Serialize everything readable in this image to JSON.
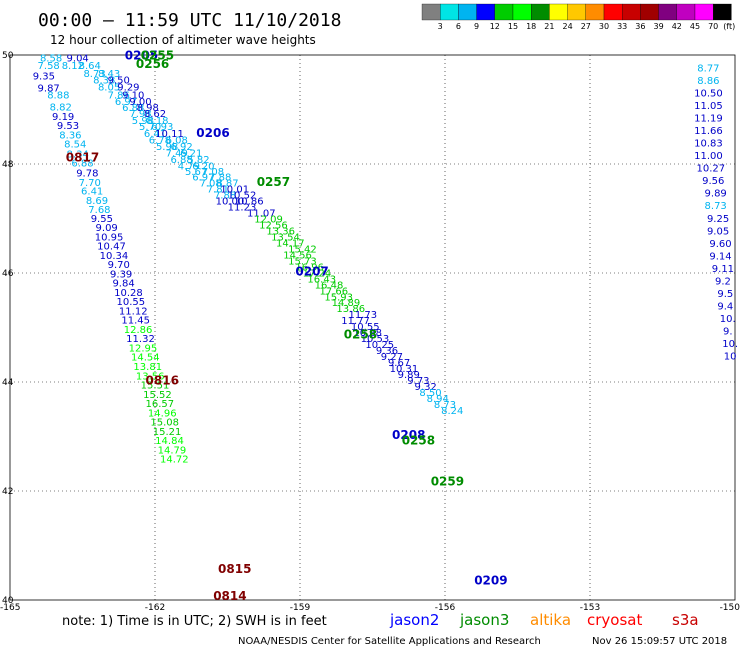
{
  "chart_data": {
    "type": "scatter",
    "title": "00:00 – 11:59 UTC 11/10/2018",
    "subtitle": "12 hour collection of altimeter wave heights",
    "xlim": [
      -165,
      -150
    ],
    "ylim": [
      40,
      50
    ],
    "x_ticks": [
      "-165",
      "-162",
      "-159",
      "-156",
      "-153",
      "-150"
    ],
    "y_ticks": [
      "40",
      "42",
      "44",
      "46",
      "48",
      "50"
    ],
    "colorbar": {
      "labels": [
        "3",
        "6",
        "9",
        "12",
        "15",
        "18",
        "21",
        "24",
        "27",
        "30",
        "33",
        "36",
        "39",
        "42",
        "45",
        "70"
      ],
      "unit": "(ft)",
      "colors": [
        "#808080",
        "#00e5e5",
        "#00b4f0",
        "#0000ff",
        "#00cc00",
        "#00ff00",
        "#008c00",
        "#ffff00",
        "#ffc800",
        "#ff8c00",
        "#ff0000",
        "#c80000",
        "#a00000",
        "#800080",
        "#c000c0",
        "#ff00ff",
        "#000000"
      ]
    },
    "track_labels": [
      {
        "label": "0205",
        "x": -162.28,
        "y": 49.92,
        "color": "#0000c8"
      },
      {
        "label": "0255",
        "x": -161.95,
        "y": 49.92,
        "color": "#008c00"
      },
      {
        "label": "0256",
        "x": -162.05,
        "y": 49.76,
        "color": "#008c00"
      },
      {
        "label": "0206",
        "x": -160.8,
        "y": 48.5,
        "color": "#0000c8"
      },
      {
        "label": "0817",
        "x": -163.5,
        "y": 48.05,
        "color": "#800000"
      },
      {
        "label": "0257",
        "x": -159.55,
        "y": 47.6,
        "color": "#008c00"
      },
      {
        "label": "0207",
        "x": -158.75,
        "y": 45.95,
        "color": "#0000c8"
      },
      {
        "label": "0258",
        "x": -157.75,
        "y": 44.8,
        "color": "#008c00"
      },
      {
        "label": "0816",
        "x": -161.85,
        "y": 43.95,
        "color": "#800000"
      },
      {
        "label": "0208",
        "x": -156.75,
        "y": 42.95,
        "color": "#0000c8"
      },
      {
        "label": "0258",
        "x": -156.55,
        "y": 42.85,
        "color": "#008c00"
      },
      {
        "label": "0259",
        "x": -155.95,
        "y": 42.1,
        "color": "#008c00"
      },
      {
        "label": "0209",
        "x": -155.05,
        "y": 40.28,
        "color": "#0000c8"
      },
      {
        "label": "0815",
        "x": -160.35,
        "y": 40.5,
        "color": "#800000"
      },
      {
        "label": "0814",
        "x": -160.45,
        "y": 40.0,
        "color": "#800000"
      }
    ],
    "observations": [
      {
        "x": -164.15,
        "y": 49.88,
        "v": "8.58",
        "c": "#00b4f0"
      },
      {
        "x": -163.6,
        "y": 49.88,
        "v": "9.04",
        "c": "#0000c8"
      },
      {
        "x": -164.2,
        "y": 49.74,
        "v": "7.58",
        "c": "#00b4f0"
      },
      {
        "x": -163.7,
        "y": 49.74,
        "v": "8.12",
        "c": "#00b4f0"
      },
      {
        "x": -163.35,
        "y": 49.74,
        "v": "8.64",
        "c": "#00b4f0"
      },
      {
        "x": -163.25,
        "y": 49.6,
        "v": "8.73",
        "c": "#00b4f0"
      },
      {
        "x": -162.95,
        "y": 49.6,
        "v": "8.43",
        "c": "#00b4f0"
      },
      {
        "x": -164.3,
        "y": 49.55,
        "v": "9.35",
        "c": "#0000c8"
      },
      {
        "x": -163.05,
        "y": 49.48,
        "v": "8.38",
        "c": "#00b4f0"
      },
      {
        "x": -162.75,
        "y": 49.48,
        "v": "9.50",
        "c": "#0000c8"
      },
      {
        "x": -164.2,
        "y": 49.33,
        "v": "9.87",
        "c": "#0000c8"
      },
      {
        "x": -162.95,
        "y": 49.35,
        "v": "8.05",
        "c": "#00b4f0"
      },
      {
        "x": -162.55,
        "y": 49.35,
        "v": "9.29",
        "c": "#0000c8"
      },
      {
        "x": -162.75,
        "y": 49.2,
        "v": "7.86",
        "c": "#00b4f0"
      },
      {
        "x": -162.45,
        "y": 49.2,
        "v": "9.10",
        "c": "#0000c8"
      },
      {
        "x": -164.0,
        "y": 49.2,
        "v": "8.88",
        "c": "#00b4f0"
      },
      {
        "x": -162.6,
        "y": 49.08,
        "v": "6.97",
        "c": "#00b4f0"
      },
      {
        "x": -162.3,
        "y": 49.08,
        "v": "9.00",
        "c": "#0000c8"
      },
      {
        "x": -163.95,
        "y": 48.98,
        "v": "8.82",
        "c": "#00b4f0"
      },
      {
        "x": -162.45,
        "y": 48.97,
        "v": "6.88",
        "c": "#00b4f0"
      },
      {
        "x": -162.15,
        "y": 48.97,
        "v": "8.98",
        "c": "#0000c8"
      },
      {
        "x": -162.3,
        "y": 48.86,
        "v": "7.98",
        "c": "#00b4f0"
      },
      {
        "x": -162.0,
        "y": 48.86,
        "v": "8.62",
        "c": "#0000c8"
      },
      {
        "x": -163.9,
        "y": 48.81,
        "v": "9.19",
        "c": "#0000c8"
      },
      {
        "x": -162.25,
        "y": 48.73,
        "v": "5.98",
        "c": "#00b4f0"
      },
      {
        "x": -161.95,
        "y": 48.73,
        "v": "8.18",
        "c": "#00b4f0"
      },
      {
        "x": -163.8,
        "y": 48.64,
        "v": "9.53",
        "c": "#0000c8"
      },
      {
        "x": -162.1,
        "y": 48.62,
        "v": "5.70",
        "c": "#00b4f0"
      },
      {
        "x": -161.85,
        "y": 48.62,
        "v": "6.93",
        "c": "#00b4f0"
      },
      {
        "x": -163.75,
        "y": 48.47,
        "v": "8.36",
        "c": "#00b4f0"
      },
      {
        "x": -162.0,
        "y": 48.5,
        "v": "6.41",
        "c": "#00b4f0"
      },
      {
        "x": -161.7,
        "y": 48.5,
        "v": "10.11",
        "c": "#0000c8"
      },
      {
        "x": -161.9,
        "y": 48.38,
        "v": "6.78",
        "c": "#00b4f0"
      },
      {
        "x": -161.55,
        "y": 48.38,
        "v": "6.08",
        "c": "#00b4f0"
      },
      {
        "x": -163.65,
        "y": 48.3,
        "v": "8.54",
        "c": "#00b4f0"
      },
      {
        "x": -161.75,
        "y": 48.26,
        "v": "5.98",
        "c": "#00b4f0"
      },
      {
        "x": -161.45,
        "y": 48.26,
        "v": "6.92",
        "c": "#00b4f0"
      },
      {
        "x": -163.6,
        "y": 48.12,
        "v": "8.34",
        "c": "#00b4f0"
      },
      {
        "x": -161.55,
        "y": 48.14,
        "v": "7.49",
        "c": "#00b4f0"
      },
      {
        "x": -161.25,
        "y": 48.14,
        "v": "6.21",
        "c": "#00b4f0"
      },
      {
        "x": -161.45,
        "y": 48.02,
        "v": "6.88",
        "c": "#00b4f0"
      },
      {
        "x": -161.1,
        "y": 48.02,
        "v": "5.82",
        "c": "#00b4f0"
      },
      {
        "x": -163.5,
        "y": 47.95,
        "v": "6.88",
        "c": "#00b4f0"
      },
      {
        "x": -161.3,
        "y": 47.9,
        "v": "4.79",
        "c": "#00b4f0"
      },
      {
        "x": -161.0,
        "y": 47.9,
        "v": "6.20",
        "c": "#00b4f0"
      },
      {
        "x": -161.15,
        "y": 47.8,
        "v": "5.67",
        "c": "#00b4f0"
      },
      {
        "x": -160.8,
        "y": 47.8,
        "v": "7.08",
        "c": "#00b4f0"
      },
      {
        "x": -163.4,
        "y": 47.77,
        "v": "9.78",
        "c": "#0000c8"
      },
      {
        "x": -161.0,
        "y": 47.7,
        "v": "6.97",
        "c": "#00b4f0"
      },
      {
        "x": -160.65,
        "y": 47.7,
        "v": "7.88",
        "c": "#00b4f0"
      },
      {
        "x": -160.85,
        "y": 47.59,
        "v": "7.08",
        "c": "#00b4f0"
      },
      {
        "x": -160.5,
        "y": 47.59,
        "v": "8.87",
        "c": "#00b4f0"
      },
      {
        "x": -163.35,
        "y": 47.6,
        "v": "7.70",
        "c": "#00b4f0"
      },
      {
        "x": -160.7,
        "y": 47.48,
        "v": "7.81",
        "c": "#00b4f0"
      },
      {
        "x": -160.35,
        "y": 47.48,
        "v": "10.01",
        "c": "#0000c8"
      },
      {
        "x": -163.3,
        "y": 47.44,
        "v": "6.41",
        "c": "#00b4f0"
      },
      {
        "x": -160.55,
        "y": 47.37,
        "v": "7.88",
        "c": "#00b4f0"
      },
      {
        "x": -160.2,
        "y": 47.37,
        "v": "10.52",
        "c": "#0000c8"
      },
      {
        "x": -163.2,
        "y": 47.27,
        "v": "8.69",
        "c": "#00b4f0"
      },
      {
        "x": -160.45,
        "y": 47.26,
        "v": "10.00",
        "c": "#0000c8"
      },
      {
        "x": -160.05,
        "y": 47.26,
        "v": "10.86",
        "c": "#0000c8"
      },
      {
        "x": -160.2,
        "y": 47.15,
        "v": "11.23",
        "c": "#0000c8"
      },
      {
        "x": -163.15,
        "y": 47.1,
        "v": "7.68",
        "c": "#00b4f0"
      },
      {
        "x": -159.8,
        "y": 47.04,
        "v": "11.07",
        "c": "#0000c8"
      },
      {
        "x": -163.1,
        "y": 46.94,
        "v": "9.55",
        "c": "#0000c8"
      },
      {
        "x": -159.65,
        "y": 46.93,
        "v": "12.09",
        "c": "#00cc00"
      },
      {
        "x": -163.0,
        "y": 46.77,
        "v": "9.09",
        "c": "#0000c8"
      },
      {
        "x": -159.55,
        "y": 46.82,
        "v": "12.56",
        "c": "#00cc00"
      },
      {
        "x": -159.4,
        "y": 46.71,
        "v": "13.36",
        "c": "#00cc00"
      },
      {
        "x": -162.95,
        "y": 46.6,
        "v": "10.95",
        "c": "#0000c8"
      },
      {
        "x": -159.3,
        "y": 46.6,
        "v": "13.54",
        "c": "#00cc00"
      },
      {
        "x": -159.2,
        "y": 46.49,
        "v": "14.17",
        "c": "#00cc00"
      },
      {
        "x": -158.95,
        "y": 46.38,
        "v": "15.42",
        "c": "#00cc00"
      },
      {
        "x": -162.9,
        "y": 46.43,
        "v": "10.47",
        "c": "#0000c8"
      },
      {
        "x": -159.05,
        "y": 46.27,
        "v": "14.56",
        "c": "#00cc00"
      },
      {
        "x": -162.85,
        "y": 46.26,
        "v": "10.34",
        "c": "#0000c8"
      },
      {
        "x": -158.95,
        "y": 46.16,
        "v": "15.73",
        "c": "#00cc00"
      },
      {
        "x": -162.75,
        "y": 46.09,
        "v": "9.70",
        "c": "#0000c8"
      },
      {
        "x": -158.8,
        "y": 46.05,
        "v": "16.96",
        "c": "#00cc00"
      },
      {
        "x": -158.65,
        "y": 45.94,
        "v": "17.24",
        "c": "#00cc00"
      },
      {
        "x": -162.7,
        "y": 45.92,
        "v": "9.39",
        "c": "#0000c8"
      },
      {
        "x": -158.55,
        "y": 45.83,
        "v": "16.43",
        "c": "#00cc00"
      },
      {
        "x": -162.65,
        "y": 45.75,
        "v": "9.84",
        "c": "#0000c8"
      },
      {
        "x": -158.4,
        "y": 45.72,
        "v": "16.48",
        "c": "#00cc00"
      },
      {
        "x": -158.3,
        "y": 45.61,
        "v": "17.66",
        "c": "#00cc00"
      },
      {
        "x": -162.55,
        "y": 45.58,
        "v": "10.28",
        "c": "#0000c8"
      },
      {
        "x": -158.2,
        "y": 45.5,
        "v": "15.93",
        "c": "#00cc00"
      },
      {
        "x": -162.5,
        "y": 45.41,
        "v": "10.55",
        "c": "#0000c8"
      },
      {
        "x": -158.05,
        "y": 45.39,
        "v": "14.89",
        "c": "#00cc00"
      },
      {
        "x": -157.95,
        "y": 45.28,
        "v": "13.86",
        "c": "#00cc00"
      },
      {
        "x": -162.45,
        "y": 45.24,
        "v": "11.12",
        "c": "#0000c8"
      },
      {
        "x": -157.7,
        "y": 45.17,
        "v": "11.73",
        "c": "#0000c8"
      },
      {
        "x": -157.85,
        "y": 45.06,
        "v": "11.77",
        "c": "#0000c8"
      },
      {
        "x": -162.4,
        "y": 45.07,
        "v": "11.45",
        "c": "#0000c8"
      },
      {
        "x": -157.65,
        "y": 44.95,
        "v": "10.55",
        "c": "#0000c8"
      },
      {
        "x": -157.6,
        "y": 44.84,
        "v": "10.88",
        "c": "#0000c8"
      },
      {
        "x": -162.35,
        "y": 44.9,
        "v": "12.86",
        "c": "#00ff00"
      },
      {
        "x": -157.45,
        "y": 44.73,
        "v": "10.53",
        "c": "#0000c8"
      },
      {
        "x": -162.3,
        "y": 44.73,
        "v": "11.32",
        "c": "#0000c8"
      },
      {
        "x": -157.35,
        "y": 44.62,
        "v": "10.25",
        "c": "#0000c8"
      },
      {
        "x": -162.25,
        "y": 44.56,
        "v": "12.95",
        "c": "#00ff00"
      },
      {
        "x": -157.2,
        "y": 44.51,
        "v": "9.36",
        "c": "#0000c8"
      },
      {
        "x": -157.1,
        "y": 44.4,
        "v": "9.27",
        "c": "#0000c8"
      },
      {
        "x": -162.2,
        "y": 44.39,
        "v": "14.54",
        "c": "#00ff00"
      },
      {
        "x": -156.95,
        "y": 44.29,
        "v": "9.67",
        "c": "#0000c8"
      },
      {
        "x": -162.15,
        "y": 44.22,
        "v": "13.81",
        "c": "#00ff00"
      },
      {
        "x": -156.85,
        "y": 44.18,
        "v": "10.31",
        "c": "#0000c8"
      },
      {
        "x": -156.75,
        "y": 44.07,
        "v": "9.89",
        "c": "#0000c8"
      },
      {
        "x": -162.1,
        "y": 44.05,
        "v": "13.56",
        "c": "#00ff00"
      },
      {
        "x": -156.55,
        "y": 43.96,
        "v": "9.73",
        "c": "#0000c8"
      },
      {
        "x": -162.0,
        "y": 43.88,
        "v": "15.51",
        "c": "#00cc00"
      },
      {
        "x": -156.4,
        "y": 43.85,
        "v": "9.32",
        "c": "#0000c8"
      },
      {
        "x": -156.3,
        "y": 43.74,
        "v": "8.50",
        "c": "#00b4f0"
      },
      {
        "x": -161.95,
        "y": 43.71,
        "v": "15.52",
        "c": "#00cc00"
      },
      {
        "x": -156.15,
        "y": 43.63,
        "v": "8.94",
        "c": "#00b4f0"
      },
      {
        "x": -161.9,
        "y": 43.54,
        "v": "16.57",
        "c": "#00cc00"
      },
      {
        "x": -156.0,
        "y": 43.52,
        "v": "8.73",
        "c": "#00b4f0"
      },
      {
        "x": -161.85,
        "y": 43.37,
        "v": "14.96",
        "c": "#00ff00"
      },
      {
        "x": -155.85,
        "y": 43.41,
        "v": "8.24",
        "c": "#00b4f0"
      },
      {
        "x": -161.8,
        "y": 43.2,
        "v": "15.08",
        "c": "#00cc00"
      },
      {
        "x": -161.75,
        "y": 43.03,
        "v": "15.21",
        "c": "#00cc00"
      },
      {
        "x": -161.7,
        "y": 42.86,
        "v": "14.84",
        "c": "#00ff00"
      },
      {
        "x": -161.65,
        "y": 42.69,
        "v": "14.79",
        "c": "#00ff00"
      },
      {
        "x": -161.6,
        "y": 42.52,
        "v": "14.72",
        "c": "#00ff00"
      },
      {
        "x": -150.55,
        "y": 49.7,
        "v": "8.77",
        "c": "#00b4f0"
      },
      {
        "x": -150.55,
        "y": 49.47,
        "v": "8.86",
        "c": "#00b4f0"
      },
      {
        "x": -150.55,
        "y": 49.24,
        "v": "10.50",
        "c": "#0000c8"
      },
      {
        "x": -150.55,
        "y": 49.01,
        "v": "11.05",
        "c": "#0000c8"
      },
      {
        "x": -150.55,
        "y": 48.78,
        "v": "11.19",
        "c": "#0000c8"
      },
      {
        "x": -150.55,
        "y": 48.55,
        "v": "11.66",
        "c": "#0000c8"
      },
      {
        "x": -150.55,
        "y": 48.32,
        "v": "10.83",
        "c": "#0000c8"
      },
      {
        "x": -150.55,
        "y": 48.09,
        "v": "11.00",
        "c": "#0000c8"
      },
      {
        "x": -150.5,
        "y": 47.86,
        "v": "10.27",
        "c": "#0000c8"
      },
      {
        "x": -150.45,
        "y": 47.63,
        "v": "9.56",
        "c": "#0000c8"
      },
      {
        "x": -150.4,
        "y": 47.4,
        "v": "9.89",
        "c": "#0000c8"
      },
      {
        "x": -150.4,
        "y": 47.17,
        "v": "8.73",
        "c": "#00b4f0"
      },
      {
        "x": -150.35,
        "y": 46.94,
        "v": "9.25",
        "c": "#0000c8"
      },
      {
        "x": -150.35,
        "y": 46.71,
        "v": "9.05",
        "c": "#0000c8"
      },
      {
        "x": -150.3,
        "y": 46.48,
        "v": "9.60",
        "c": "#0000c8"
      },
      {
        "x": -150.3,
        "y": 46.25,
        "v": "9.14",
        "c": "#0000c8"
      },
      {
        "x": -150.25,
        "y": 46.02,
        "v": "9.11",
        "c": "#0000c8"
      },
      {
        "x": -150.25,
        "y": 45.79,
        "v": "9.2",
        "c": "#0000c8"
      },
      {
        "x": -150.2,
        "y": 45.56,
        "v": "9.5",
        "c": "#0000c8"
      },
      {
        "x": -150.2,
        "y": 45.33,
        "v": "9.4",
        "c": "#0000c8"
      },
      {
        "x": -150.15,
        "y": 45.1,
        "v": "10.",
        "c": "#0000c8"
      },
      {
        "x": -150.15,
        "y": 44.87,
        "v": "9.",
        "c": "#0000c8"
      },
      {
        "x": -150.1,
        "y": 44.64,
        "v": "10.",
        "c": "#0000c8"
      },
      {
        "x": -150.1,
        "y": 44.41,
        "v": "10",
        "c": "#0000c8"
      }
    ]
  },
  "note": "note:  1) Time is in UTC;  2) SWH is in feet",
  "legend": [
    {
      "name": "jason2",
      "color": "#0000ff"
    },
    {
      "name": "jason3",
      "color": "#008c00"
    },
    {
      "name": "altika",
      "color": "#ff8c00"
    },
    {
      "name": "cryosat",
      "color": "#ff0000"
    },
    {
      "name": "s3a",
      "color": "#c80000"
    }
  ],
  "footer": {
    "center": "NOAA/NESDIS Center for Satellite Applications and Research",
    "timestamp": "Nov 26 15:09:57 UTC 2018"
  }
}
